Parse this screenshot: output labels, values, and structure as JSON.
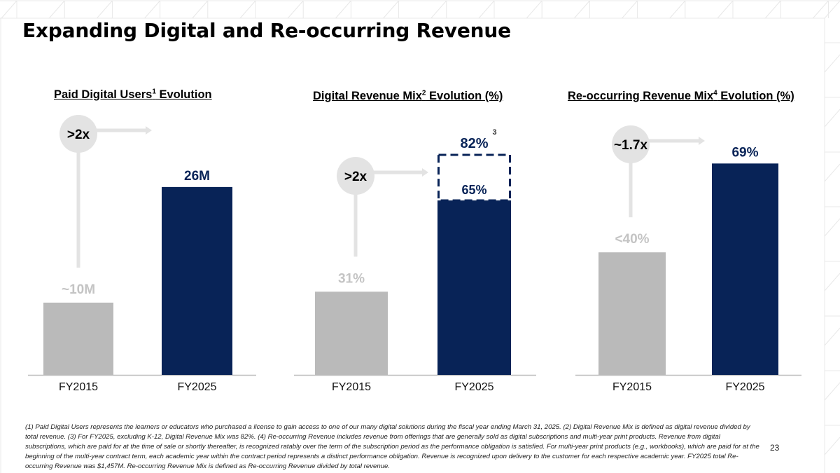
{
  "slide": {
    "title": "Expanding Digital and Re-occurring Revenue",
    "page_number": "23",
    "footnote": "(1) Paid Digital Users represents the learners or educators who purchased a license to gain access to one of our many digital solutions during the fiscal year ending March 31, 2025. (2) Digital Revenue Mix is defined as digital revenue divided by total revenue. (3) For FY2025, excluding K-12, Digital Revenue Mix was 82%. (4) Re-occurring Revenue includes revenue from offerings that are generally sold as digital subscriptions and multi-year print products. Revenue from digital subscriptions, which are paid for at the time of sale or shortly thereafter, is recognized ratably over the term of the subscription period as the performance obligation is satisfied. For multi-year print products (e.g., workbooks), which are paid for at the beginning of the multi-year contract term, each academic year within the contract period represents a distinct performance obligation. Revenue is recognized upon delivery to the customer for each respective academic year. FY2025 total Re-occurring Revenue was $1,457M. Re-occurring Revenue Mix is defined as Re-occurring Revenue divided by total revenue.",
    "colors": {
      "navy": "#082357",
      "gray_bar": "#BABABA",
      "gray_label": "#C4C4C4",
      "growth_circle": "#E3E3E3",
      "axis": "#BDBDBD",
      "background_grid": "#E8E8E8"
    }
  },
  "chart_data": [
    {
      "type": "bar",
      "title": "Paid Digital Users Evolution",
      "title_parts": {
        "before": "Paid Digital Users",
        "sup": "1",
        "after": " Evolution"
      },
      "categories": [
        "FY2015",
        "FY2025"
      ],
      "values": [
        10,
        26
      ],
      "data_labels": [
        "~10M",
        "26M"
      ],
      "unit": "M",
      "growth_label": ">2x",
      "xlabel": "",
      "ylabel": "",
      "ylim": [
        0,
        32
      ],
      "grid": false
    },
    {
      "type": "bar",
      "title": "Digital Revenue Mix Evolution (%)",
      "title_parts": {
        "before": "Digital Revenue Mix",
        "sup": "2",
        "after": " Evolution (%)"
      },
      "categories": [
        "FY2015",
        "FY2025"
      ],
      "values": [
        31,
        65
      ],
      "data_labels": [
        "31%",
        "65%"
      ],
      "unit": "%",
      "growth_label": ">2x",
      "highlight": {
        "category": "FY2025",
        "value": 82,
        "label": "82%",
        "footnote_ref": "3",
        "style": "dashed-outline"
      },
      "xlabel": "",
      "ylabel": "",
      "ylim": [
        0,
        100
      ],
      "grid": false
    },
    {
      "type": "bar",
      "title": "Re-occurring Revenue Mix Evolution (%)",
      "title_parts": {
        "before": "Re-occurring Revenue Mix",
        "sup": "4",
        "after": " Evolution (%)"
      },
      "categories": [
        "FY2015",
        "FY2025"
      ],
      "values": [
        40,
        69
      ],
      "data_labels": [
        "<40%",
        "69%"
      ],
      "unit": "%",
      "growth_label": "~1.7x",
      "xlabel": "",
      "ylabel": "",
      "ylim": [
        0,
        86
      ],
      "grid": false
    }
  ]
}
